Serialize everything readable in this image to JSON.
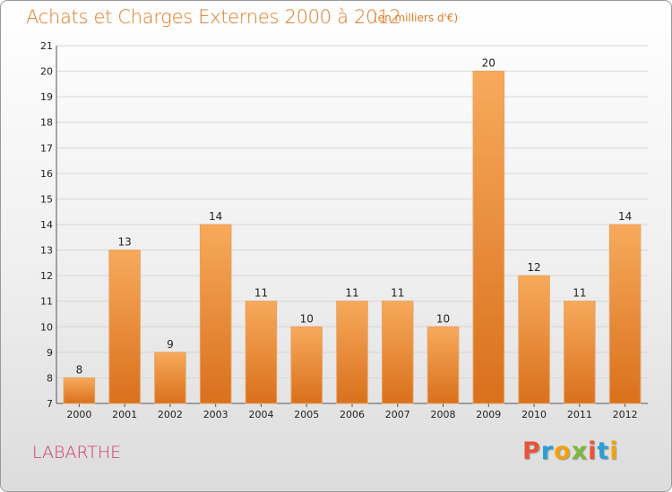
{
  "header": {
    "title": "Achats et Charges Externes 2000 à 2012",
    "unit": "(en milliers d'€)"
  },
  "footer": {
    "commune": "LABARTHE",
    "logo_text": "Proxiti",
    "logo_colors": [
      "#e8543a",
      "#2a9fd6",
      "#f2a20c",
      "#7db93b",
      "#e8543a",
      "#2a9fd6",
      "#f2a20c"
    ]
  },
  "colors": {
    "accent": "#e07a25",
    "commune": "#d03a6a",
    "bar_top": "#f7aa5c",
    "bar_bottom": "#d9701c"
  },
  "chart_data": {
    "type": "bar",
    "title": "Achats et Charges Externes 2000 à 2012",
    "subtitle": "(en milliers d'€)",
    "categories": [
      "2000",
      "2001",
      "2002",
      "2003",
      "2004",
      "2005",
      "2006",
      "2007",
      "2008",
      "2009",
      "2010",
      "2011",
      "2012"
    ],
    "values": [
      8,
      13,
      9,
      14,
      11,
      10,
      11,
      11,
      10,
      20,
      12,
      11,
      14
    ],
    "ylim": [
      7,
      21
    ],
    "yticks": [
      7,
      8,
      9,
      10,
      11,
      12,
      13,
      14,
      15,
      16,
      17,
      18,
      19,
      20,
      21
    ],
    "grid": true,
    "xlabel": "",
    "ylabel": ""
  }
}
